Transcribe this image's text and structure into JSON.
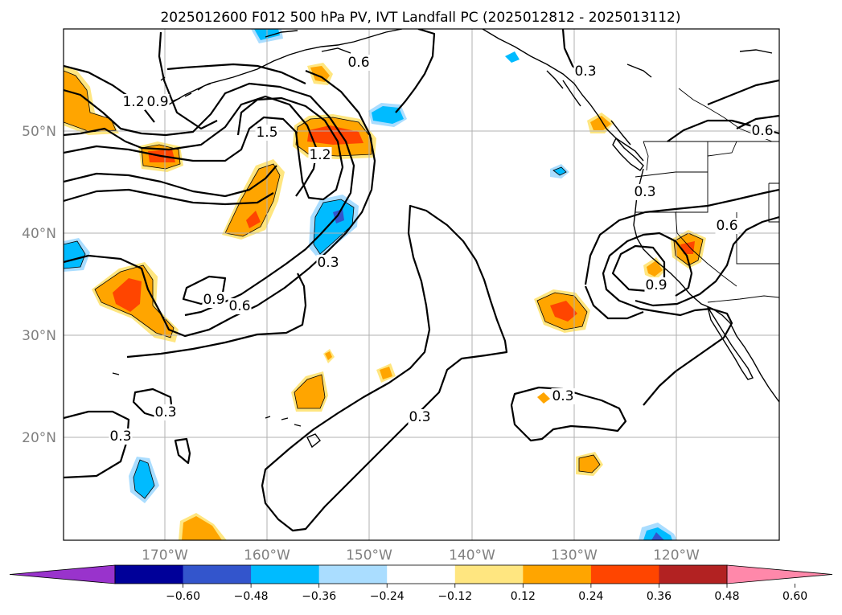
{
  "title": "2025012600 F012 500 hPa PV, IVT Landfall PC (2025012812 - 2025013112)",
  "map": {
    "lon_labels": [
      "170°W",
      "160°W",
      "150°W",
      "140°W",
      "130°W",
      "120°W"
    ],
    "lat_labels": [
      "50°N",
      "40°N",
      "30°N",
      "20°N"
    ],
    "contour_labels": [
      {
        "text": "0.6",
        "name": "contour-label-0-6-alaska"
      },
      {
        "text": "0.3",
        "name": "contour-label-0-3-bc"
      },
      {
        "text": "0.6",
        "name": "contour-label-0-6-canada"
      },
      {
        "text": "1.2",
        "name": "contour-label-1-2-west"
      },
      {
        "text": "0.9",
        "name": "contour-label-0-9-west"
      },
      {
        "text": "1.5",
        "name": "contour-label-1-5"
      },
      {
        "text": "1.2",
        "name": "contour-label-1-2-center"
      },
      {
        "text": "0.3",
        "name": "contour-label-0-3-coast"
      },
      {
        "text": "0.6",
        "name": "contour-label-0-6-california"
      },
      {
        "text": "0.9",
        "name": "contour-label-0-9-california"
      },
      {
        "text": "0.3",
        "name": "contour-label-0-3-central"
      },
      {
        "text": "0.9",
        "name": "contour-label-0-9-south"
      },
      {
        "text": "0.6",
        "name": "contour-label-0-6-south"
      },
      {
        "text": "0.3",
        "name": "contour-label-0-3-mexico"
      },
      {
        "text": "0.3",
        "name": "contour-label-0-3-hawaii"
      },
      {
        "text": "0.3",
        "name": "contour-label-0-3-sw"
      },
      {
        "text": "0.3",
        "name": "contour-label-0-3-far-west"
      }
    ]
  },
  "colorbar": {
    "ticks": [
      "−0.60",
      "−0.48",
      "−0.36",
      "−0.24",
      "−0.12",
      "0.12",
      "0.24",
      "0.36",
      "0.48",
      "0.60"
    ],
    "colors": [
      "#9933cc",
      "#000099",
      "#3355cc",
      "#00bbff",
      "#aaddff",
      "#ffffff",
      "#ffe680",
      "#ffa500",
      "#ff4500",
      "#b22222",
      "#ff88aa"
    ]
  },
  "colors": {
    "positive_light": "#ffe680",
    "positive_mid": "#ffa500",
    "positive_strong": "#ff4500",
    "negative_light": "#aaddff",
    "negative_mid": "#00bbff",
    "negative_strong": "#3355cc"
  }
}
